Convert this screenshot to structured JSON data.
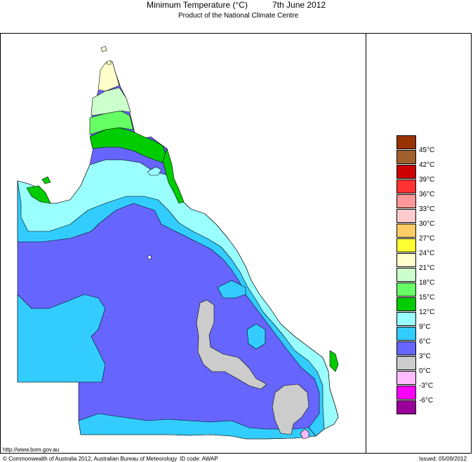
{
  "header": {
    "title": "Minimum Temperature (°C)",
    "date": "7th June 2012",
    "subtitle": "Product of the National Climate Centre"
  },
  "legend": {
    "items": [
      {
        "label": "",
        "color": "#993300"
      },
      {
        "label": "45°C",
        "color": "#a0602e"
      },
      {
        "label": "42°C",
        "color": "#cc0000"
      },
      {
        "label": "39°C",
        "color": "#ff3333"
      },
      {
        "label": "36°C",
        "color": "#ff9999"
      },
      {
        "label": "33°C",
        "color": "#ffcccc"
      },
      {
        "label": "30°C",
        "color": "#ffcc66"
      },
      {
        "label": "27°C",
        "color": "#ffff33"
      },
      {
        "label": "24°C",
        "color": "#ffffcc"
      },
      {
        "label": "21°C",
        "color": "#ccffcc"
      },
      {
        "label": "18°C",
        "color": "#66ff66"
      },
      {
        "label": "15°C",
        "color": "#00cc00"
      },
      {
        "label": "12°C",
        "color": "#99ffff"
      },
      {
        "label": "9°C",
        "color": "#33ccff"
      },
      {
        "label": "6°C",
        "color": "#6666ff"
      },
      {
        "label": "3°C",
        "color": "#cccccc"
      },
      {
        "label": "0°C",
        "color": "#ffbbff"
      },
      {
        "label": "-3°C",
        "color": "#ff00ff"
      },
      {
        "label": "-6°C",
        "color": "#990099"
      }
    ]
  },
  "footer": {
    "url": "http://www.bom.gov.au",
    "copyright": "© Commonwealth of Australia 2012, Australian Bureau of Meteorology",
    "id_code": "ID code: AWAP",
    "issued": "Issued: 05/09/2012"
  }
}
